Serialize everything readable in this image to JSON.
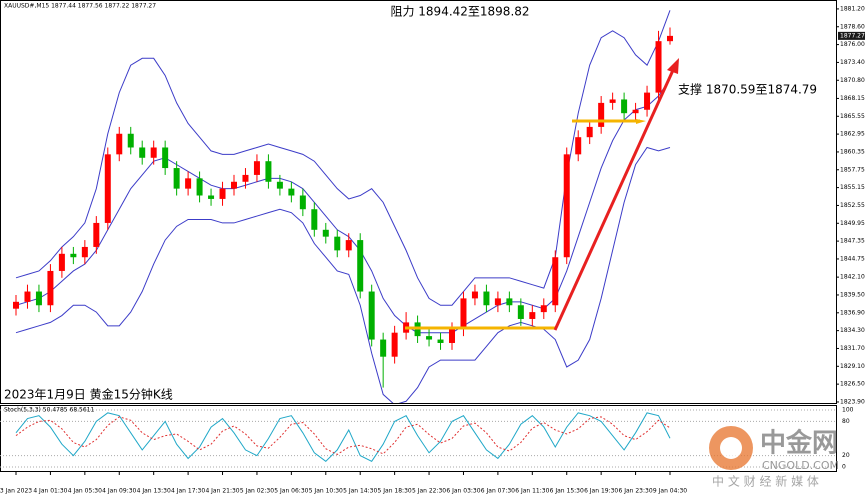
{
  "chart_data": [
    {
      "type": "candlestick",
      "title": "XAUUSD#,M15 1877.44 1877.56 1877.22 1877.27",
      "caption": "2023年1月9日  黄金15分钟K线",
      "annotations": [
        "阻力 1894.42至1898.82",
        "支撑 1870.59至1874.79"
      ],
      "categories": [
        "3 Jan 2023",
        null,
        null,
        "4 Jan 01:30",
        null,
        null,
        "4 Jan 05:30",
        null,
        null,
        "4 Jan 09:30",
        null,
        null,
        "4 Jan 13:30",
        null,
        null,
        "4 Jan 17:30",
        null,
        null,
        "4 Jan 21:30",
        null,
        null,
        "5 Jan 02:30",
        null,
        null,
        "5 Jan 06:30",
        null,
        null,
        "5 Jan 10:30",
        null,
        null,
        "5 Jan 14:30",
        null,
        null,
        "5 Jan 18:30",
        null,
        null,
        "5 Jan 22:30",
        null,
        null,
        "6 Jan 03:30",
        null,
        null,
        "6 Jan 07:30",
        null,
        null,
        "6 Jan 11:30",
        null,
        null,
        "6 Jan 15:30",
        null,
        null,
        "6 Jan 19:30",
        null,
        null,
        "6 Jan 23:30",
        null,
        null,
        "9 Jan 04:30"
      ],
      "open": [
        1837.5,
        1838.5,
        1840,
        1838,
        1843,
        1845.5,
        1845,
        1846.5,
        1850,
        1860,
        1863,
        1861,
        1859.5,
        1861,
        1858,
        1855,
        1856.5,
        1854,
        1853.5,
        1855,
        1856,
        1857,
        1859,
        1856,
        1855,
        1854,
        1852,
        1849,
        1848,
        1846,
        1847.5,
        1840,
        1833,
        1830.5,
        1834,
        1835.5,
        1833.5,
        1833,
        1832.5,
        1834.5,
        1839,
        1840,
        1838,
        1839,
        1838,
        1836,
        1837,
        1838,
        1845,
        1860,
        1862.5,
        1864,
        1867.5,
        1868,
        1866,
        1866.5,
        1869,
        1876.5
      ],
      "high": [
        1839.5,
        1841,
        1841,
        1844,
        1846.5,
        1846.5,
        1847.5,
        1851,
        1861,
        1864,
        1864,
        1862,
        1862,
        1862,
        1859,
        1857.5,
        1857.5,
        1855,
        1856,
        1857,
        1858,
        1860,
        1860,
        1857,
        1856,
        1855,
        1853,
        1850,
        1849,
        1848.5,
        1848.5,
        1841,
        1834,
        1835,
        1837,
        1836.5,
        1834.5,
        1834,
        1835.5,
        1840,
        1841,
        1841,
        1840,
        1840,
        1839,
        1838,
        1839,
        1846,
        1861,
        1863.5,
        1865,
        1868.5,
        1869,
        1869,
        1867.5,
        1870,
        1878,
        1878.5
      ],
      "low": [
        1836.5,
        1837.5,
        1837,
        1837,
        1842,
        1844,
        1844,
        1845.5,
        1849,
        1859,
        1860,
        1858.5,
        1858.5,
        1857,
        1854,
        1854,
        1853,
        1852.5,
        1852.5,
        1854,
        1855,
        1856,
        1855,
        1854,
        1853,
        1851,
        1848,
        1847,
        1845,
        1845,
        1839,
        1832,
        1826,
        1829.5,
        1833,
        1832.5,
        1832,
        1831.5,
        1831.5,
        1833.5,
        1838,
        1837,
        1837,
        1837,
        1835,
        1835,
        1836,
        1837,
        1844,
        1859,
        1861.5,
        1863,
        1866.5,
        1865,
        1865,
        1865.5,
        1868,
        1876
      ],
      "close": [
        1838.5,
        1840,
        1838,
        1843,
        1845.5,
        1845,
        1846.5,
        1850,
        1860,
        1863,
        1861,
        1859.5,
        1861,
        1858,
        1855,
        1856.5,
        1854,
        1853.5,
        1855,
        1856,
        1857,
        1859,
        1856,
        1855,
        1854,
        1852,
        1849,
        1848,
        1846,
        1847.5,
        1840,
        1833,
        1830.5,
        1834,
        1835.5,
        1833.5,
        1833,
        1832.5,
        1834.5,
        1839,
        1840,
        1838,
        1839,
        1838,
        1836,
        1837,
        1838,
        1845,
        1860,
        1862.5,
        1864,
        1867.5,
        1868,
        1866,
        1866.5,
        1869,
        1876.5,
        1877.27
      ],
      "up_color": "#ff0000",
      "down_color": "#00b000",
      "bollinger": {
        "color": "#3c3cc8",
        "upper": [
          1842,
          1842.5,
          1843,
          1844.5,
          1846.5,
          1848,
          1850,
          1855,
          1863,
          1869,
          1873,
          1874,
          1874,
          1871.5,
          1867.5,
          1864.5,
          1862.5,
          1860.5,
          1860,
          1860,
          1860.5,
          1861,
          1861.5,
          1861,
          1860.5,
          1860,
          1859,
          1857,
          1855,
          1853.5,
          1854,
          1855,
          1853,
          1849.5,
          1846,
          1842,
          1839,
          1838,
          1838,
          1840,
          1842,
          1842,
          1842,
          1842,
          1841.5,
          1841,
          1840.5,
          1845,
          1857,
          1866,
          1873,
          1877,
          1878,
          1877,
          1874.5,
          1873,
          1876.5,
          1881
        ],
        "middle": [
          1838,
          1838.5,
          1839,
          1840,
          1841.5,
          1843,
          1844,
          1846,
          1849,
          1852,
          1855,
          1857,
          1859,
          1859.5,
          1858.5,
          1857.5,
          1856.5,
          1855.5,
          1855,
          1855,
          1855.5,
          1856,
          1856.5,
          1856.5,
          1856,
          1855,
          1853,
          1851,
          1849,
          1848,
          1846,
          1843,
          1839,
          1836.5,
          1835,
          1834,
          1834,
          1834,
          1834,
          1835,
          1836,
          1837,
          1838,
          1838.5,
          1838.5,
          1838,
          1837.5,
          1839,
          1843,
          1848,
          1853,
          1858,
          1862,
          1865,
          1866.5,
          1867,
          1868.5,
          1871
        ],
        "lower": [
          1834,
          1834.5,
          1835,
          1835.5,
          1836.5,
          1838,
          1838,
          1837,
          1835,
          1835,
          1837,
          1840,
          1844,
          1847.5,
          1849.5,
          1850.5,
          1850.5,
          1850.5,
          1850,
          1850,
          1850.5,
          1851,
          1851.5,
          1852,
          1851.5,
          1850,
          1847,
          1845,
          1843,
          1842.5,
          1838,
          1831,
          1825,
          1823.5,
          1824,
          1826,
          1829,
          1830,
          1830,
          1830,
          1830,
          1832,
          1834,
          1835,
          1835.5,
          1835,
          1834.5,
          1833,
          1829,
          1830,
          1833,
          1839,
          1846,
          1853,
          1858.5,
          1861,
          1860.5,
          1861
        ]
      },
      "ylim": [
        1823.75,
        1882.5
      ],
      "yticks": [
        {
          "value": 1881.2,
          "label": "1881.20"
        },
        {
          "value": 1878.6,
          "label": "1878.60"
        },
        {
          "value": 1876,
          "label": "1876.00"
        },
        {
          "value": 1873.4,
          "label": "1873.40"
        },
        {
          "value": 1870.8,
          "label": "1870.80"
        },
        1868.15,
        1865.55,
        1862.95,
        1860.35,
        1857.75,
        1855.15,
        1852.55,
        1849.95,
        1847.35,
        1844.75,
        {
          "value": 1842.1,
          "label": "1842.10"
        },
        {
          "value": 1839.5,
          "label": "1839.50"
        },
        {
          "value": 1836.9,
          "label": "1836.90"
        },
        {
          "value": 1834.3,
          "label": "1834.30"
        },
        {
          "value": 1831.7,
          "label": "1831.70"
        },
        {
          "value": 1829.1,
          "label": "1829.10"
        },
        {
          "value": 1826.5,
          "label": "1826.50"
        },
        {
          "value": 1823.9,
          "label": "1823.90"
        }
      ]
    },
    {
      "type": "line",
      "title": "Stoch(5,3,3) 50.4785 68.5611",
      "series": [
        {
          "color": "#20a8c8",
          "dashed": false,
          "values": [
            60,
            85,
            90,
            70,
            40,
            20,
            45,
            80,
            95,
            90,
            60,
            30,
            55,
            80,
            40,
            15,
            35,
            70,
            85,
            60,
            30,
            20,
            50,
            85,
            90,
            60,
            25,
            10,
            30,
            65,
            20,
            10,
            40,
            80,
            90,
            55,
            25,
            45,
            80,
            90,
            60,
            30,
            15,
            40,
            75,
            90,
            70,
            35,
            70,
            95,
            90,
            80,
            55,
            30,
            60,
            95,
            90,
            50.4785
          ]
        },
        {
          "color": "#e03030",
          "dashed": true,
          "values": [
            55,
            70,
            80,
            82,
            67,
            43,
            35,
            48,
            73,
            88,
            82,
            60,
            48,
            55,
            58,
            45,
            30,
            40,
            63,
            72,
            58,
            37,
            33,
            52,
            75,
            78,
            58,
            32,
            22,
            35,
            38,
            32,
            23,
            43,
            70,
            75,
            57,
            42,
            50,
            72,
            77,
            60,
            35,
            28,
            43,
            68,
            78,
            65,
            58,
            67,
            85,
            88,
            75,
            55,
            48,
            62,
            82,
            68.5611
          ]
        }
      ],
      "ylim": [
        0,
        100
      ],
      "yticks": [
        100,
        80,
        20,
        0
      ],
      "grid": true
    }
  ],
  "watermark": {
    "title": "中金网",
    "site": "CNGOLD.COM",
    "slogan": "中 文 财 经 新 媒 体"
  }
}
